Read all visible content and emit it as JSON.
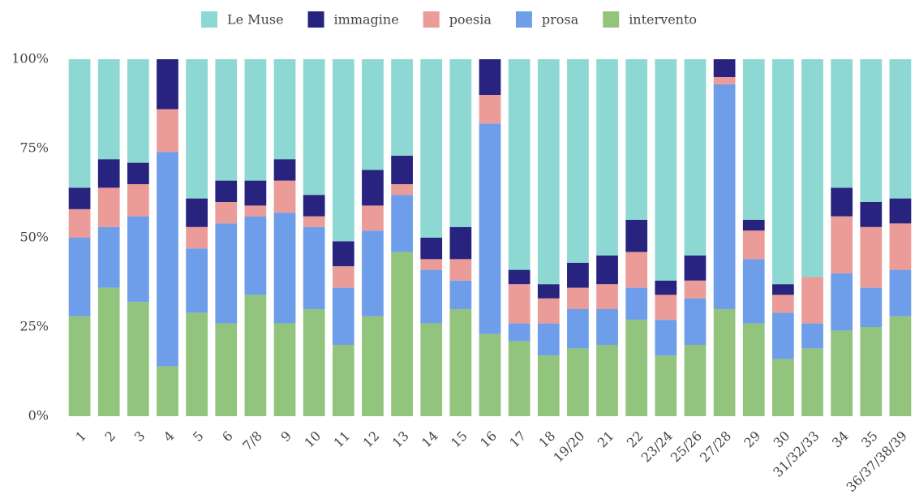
{
  "chart_data": {
    "type": "stacked_bar",
    "categories": [
      "1",
      "2",
      "3",
      "4",
      "5",
      "6",
      "7/8",
      "9",
      "10",
      "11",
      "12",
      "13",
      "14",
      "15",
      "16",
      "17",
      "18",
      "19/20",
      "21",
      "22",
      "23/24",
      "25/26",
      "27/28",
      "29",
      "30",
      "31/32/33",
      "34",
      "35",
      "36/37/38/39"
    ],
    "series": [
      {
        "name": "Le Muse",
        "color": "#8dd8d2",
        "values": [
          36,
          28,
          29,
          0,
          39,
          34,
          34,
          28,
          38,
          51,
          31,
          27,
          50,
          47,
          0,
          59,
          63,
          57,
          55,
          45,
          62,
          55,
          0,
          45,
          63,
          61,
          36,
          40,
          39
        ]
      },
      {
        "name": "immagine",
        "color": "#27237e",
        "values": [
          6,
          8,
          6,
          14,
          8,
          6,
          7,
          6,
          6,
          7,
          10,
          8,
          6,
          9,
          10,
          4,
          4,
          7,
          8,
          9,
          4,
          7,
          5,
          3,
          3,
          0,
          8,
          7,
          7
        ]
      },
      {
        "name": "poesia",
        "color": "#eb9b98",
        "values": [
          8,
          11,
          9,
          12,
          6,
          6,
          3,
          9,
          3,
          6,
          7,
          3,
          3,
          6,
          8,
          11,
          7,
          6,
          7,
          10,
          7,
          5,
          2,
          8,
          5,
          13,
          16,
          17,
          13
        ]
      },
      {
        "name": "prosa",
        "color": "#6e9eea",
        "values": [
          22,
          17,
          24,
          60,
          18,
          28,
          22,
          31,
          23,
          16,
          24,
          16,
          15,
          8,
          59,
          5,
          9,
          11,
          10,
          9,
          10,
          13,
          63,
          18,
          13,
          7,
          16,
          11,
          13
        ]
      },
      {
        "name": "intervento",
        "color": "#93c47d",
        "values": [
          28,
          36,
          32,
          14,
          29,
          26,
          34,
          26,
          30,
          20,
          28,
          46,
          26,
          30,
          23,
          21,
          17,
          19,
          20,
          27,
          17,
          20,
          30,
          26,
          16,
          19,
          24,
          25,
          28
        ]
      }
    ],
    "ylim": [
      0,
      100
    ],
    "yticks": [
      {
        "value": 0,
        "label": "0%"
      },
      {
        "value": 25,
        "label": "25%"
      },
      {
        "value": 50,
        "label": "50%"
      },
      {
        "value": 75,
        "label": "75%"
      },
      {
        "value": 100,
        "label": "100%"
      }
    ],
    "legend": "top"
  }
}
